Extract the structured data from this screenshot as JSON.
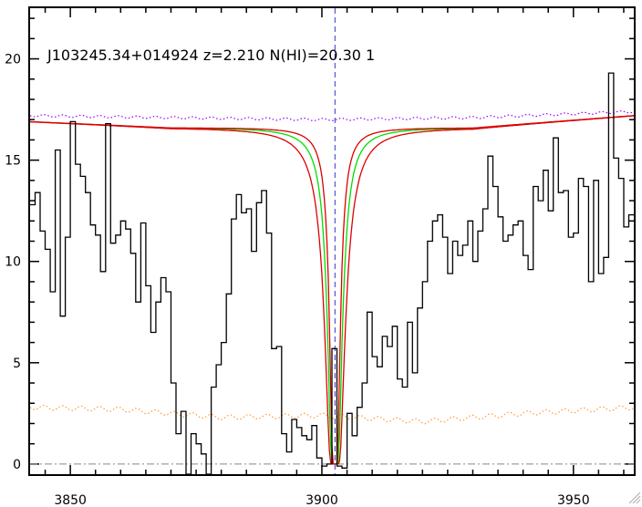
{
  "chart_data": {
    "type": "line",
    "title": "J103245.34+014924 z=2.210 N(HI)=20.30 1",
    "xlabel": "",
    "ylabel": "",
    "xlim": [
      3842,
      3962
    ],
    "ylim": [
      -0.5,
      22.5
    ],
    "x_ticks": [
      3850,
      3900,
      3950
    ],
    "y_ticks": [
      0,
      5,
      10,
      15,
      20
    ],
    "grid": false,
    "colors": {
      "flux": "#000000",
      "fit": "#00dd00",
      "fit_bounds": "#dd0000",
      "continuum": "#9900ff",
      "error": "#ff9933",
      "center_line": "#3333cc",
      "zero_line": "#888888"
    },
    "center_wavelength": 3902.6,
    "continuum_level": 17.0,
    "series": [
      {
        "style": "histogram",
        "x": [
          3842.0,
          3843.0,
          3844.0,
          3845.0,
          3846.0,
          3847.0,
          3848.0,
          3849.0,
          3850.0,
          3851.0,
          3852.0,
          3853.0,
          3854.0,
          3855.0,
          3856.0,
          3857.0,
          3858.0,
          3859.0,
          3860.0,
          3861.0,
          3862.0,
          3863.0,
          3864.0,
          3865.0,
          3866.0,
          3867.0,
          3868.0,
          3869.0,
          3870.0,
          3871.0,
          3872.0,
          3873.0,
          3874.0,
          3875.0,
          3876.0,
          3877.0,
          3878.0,
          3879.0,
          3880.0,
          3881.0,
          3882.0,
          3883.0,
          3884.0,
          3885.0,
          3886.0,
          3887.0,
          3888.0,
          3889.0,
          3890.0,
          3891.0,
          3892.0,
          3893.0,
          3894.0,
          3895.0,
          3896.0,
          3897.0,
          3898.0,
          3899.0,
          3900.0,
          3901.0,
          3902.0,
          3903.0,
          3904.0,
          3905.0,
          3906.0,
          3907.0,
          3908.0,
          3909.0,
          3910.0,
          3911.0,
          3912.0,
          3913.0,
          3914.0,
          3915.0,
          3916.0,
          3917.0,
          3918.0,
          3919.0,
          3920.0,
          3921.0,
          3922.0,
          3923.0,
          3924.0,
          3925.0,
          3926.0,
          3927.0,
          3928.0,
          3929.0,
          3930.0,
          3931.0,
          3932.0,
          3933.0,
          3934.0,
          3935.0,
          3936.0,
          3937.0,
          3938.0,
          3939.0,
          3940.0,
          3941.0,
          3942.0,
          3943.0,
          3944.0,
          3945.0,
          3946.0,
          3947.0,
          3948.0,
          3949.0,
          3950.0,
          3951.0,
          3952.0,
          3953.0,
          3954.0,
          3955.0,
          3956.0,
          3957.0,
          3958.0,
          3959.0,
          3960.0,
          3961.0
        ],
        "values": [
          12.8,
          13.4,
          11.5,
          10.6,
          8.5,
          15.5,
          7.3,
          11.2,
          16.9,
          14.8,
          14.2,
          13.4,
          11.8,
          11.3,
          9.5,
          16.8,
          10.9,
          11.3,
          12.0,
          11.6,
          10.4,
          8.0,
          11.9,
          8.8,
          6.5,
          8.0,
          9.2,
          8.5,
          4.0,
          1.5,
          2.6,
          -0.8,
          1.5,
          1.0,
          0.5,
          -0.8,
          3.8,
          4.9,
          6.0,
          8.4,
          12.1,
          13.3,
          12.4,
          12.6,
          10.5,
          12.9,
          13.5,
          11.4,
          5.7,
          5.8,
          1.5,
          0.6,
          2.2,
          1.8,
          1.4,
          1.2,
          1.9,
          0.3,
          -0.1,
          0.0,
          5.7,
          -0.1,
          -0.2,
          2.5,
          1.4,
          2.8,
          4.0,
          7.5,
          5.3,
          4.8,
          6.3,
          5.8,
          6.8,
          4.2,
          3.8,
          7.0,
          4.5,
          7.7,
          9.0,
          11.0,
          12.0,
          12.3,
          11.2,
          9.4,
          11.0,
          10.3,
          10.8,
          12.0,
          10.0,
          11.5,
          12.6,
          15.2,
          13.7,
          12.2,
          11.0,
          11.3,
          11.8,
          12.0,
          10.3,
          9.6,
          13.7,
          13.0,
          14.5,
          12.5,
          16.1,
          13.4,
          13.5,
          11.2,
          11.4,
          14.1,
          13.7,
          9.0,
          14.0,
          9.4,
          10.2,
          19.3,
          15.1,
          14.1,
          11.7,
          12.3
        ]
      },
      {
        "style": "voigt-fit",
        "b_param": 1.0
      },
      {
        "style": "voigt-fit-lower",
        "b_param": 0.72
      },
      {
        "style": "voigt-fit-upper",
        "b_param": 1.38
      },
      {
        "style": "continuum",
        "x": [
          3842,
          3870,
          3900,
          3930,
          3962
        ],
        "values": [
          17.2,
          17.1,
          17.0,
          17.1,
          17.4
        ]
      },
      {
        "style": "error",
        "x": [
          3842,
          3860,
          3880,
          3900,
          3920,
          3940,
          3962
        ],
        "values": [
          2.8,
          2.7,
          2.3,
          2.4,
          2.1,
          2.5,
          2.8
        ]
      }
    ]
  }
}
